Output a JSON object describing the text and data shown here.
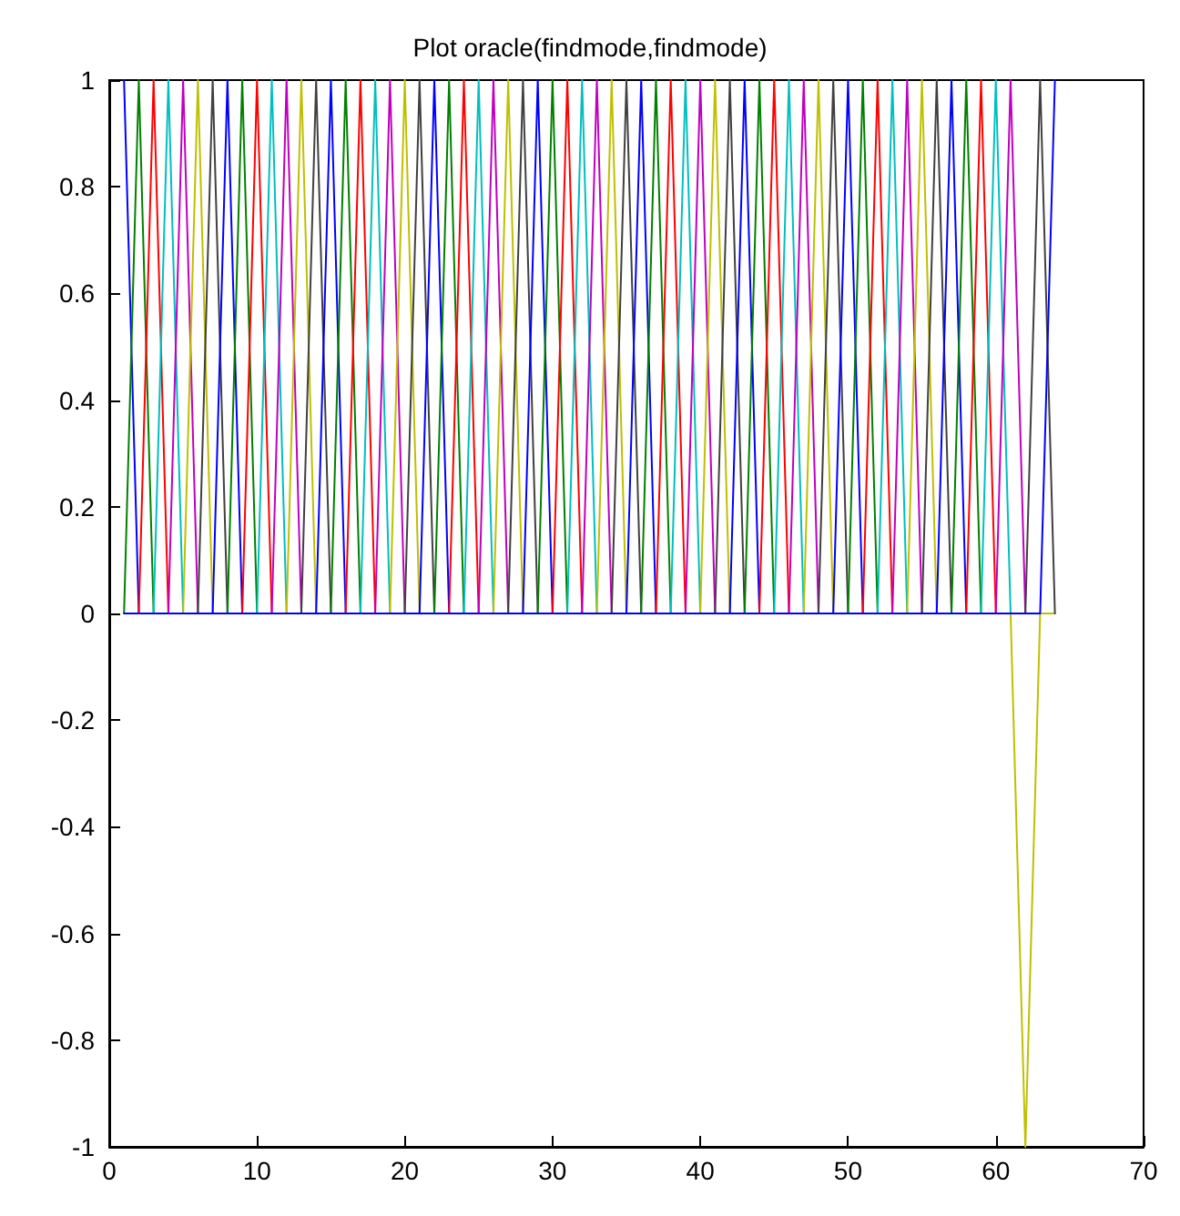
{
  "chart_data": {
    "type": "line",
    "title": "Plot oracle(findmode,findmode)",
    "xlim": [
      0,
      70
    ],
    "xticks": [
      0,
      10,
      20,
      30,
      40,
      50,
      60,
      70
    ],
    "ylim": [
      -1,
      1
    ],
    "yticks": [
      -1,
      -0.8,
      -0.6,
      -0.4,
      -0.2,
      0,
      0.2,
      0.4,
      0.6,
      0.8,
      1
    ],
    "grid": false,
    "marker": "none",
    "line_style": "solid",
    "series": [
      {
        "color": "#0000ff",
        "x": [
          1,
          2
        ],
        "values": [
          1,
          0
        ]
      },
      {
        "color": "#008000",
        "x": [
          1,
          2,
          3
        ],
        "values": [
          0,
          1,
          0
        ]
      },
      {
        "color": "#ff0000",
        "x": [
          2,
          3,
          4
        ],
        "values": [
          0,
          1,
          0
        ]
      },
      {
        "color": "#00bfbf",
        "x": [
          3,
          4,
          5
        ],
        "values": [
          0,
          1,
          0
        ]
      },
      {
        "color": "#bf00bf",
        "x": [
          4,
          5,
          6
        ],
        "values": [
          0,
          1,
          0
        ]
      },
      {
        "color": "#bfbf00",
        "x": [
          5,
          6,
          7
        ],
        "values": [
          0,
          1,
          0
        ]
      },
      {
        "color": "#404040",
        "x": [
          6,
          7,
          8
        ],
        "values": [
          0,
          1,
          0
        ]
      },
      {
        "color": "#0000ff",
        "x": [
          7,
          8,
          9
        ],
        "values": [
          0,
          1,
          0
        ]
      },
      {
        "color": "#008000",
        "x": [
          8,
          9,
          10
        ],
        "values": [
          0,
          1,
          0
        ]
      },
      {
        "color": "#ff0000",
        "x": [
          9,
          10,
          11
        ],
        "values": [
          0,
          1,
          0
        ]
      },
      {
        "color": "#00bfbf",
        "x": [
          10,
          11,
          12
        ],
        "values": [
          0,
          1,
          0
        ]
      },
      {
        "color": "#bf00bf",
        "x": [
          11,
          12,
          13
        ],
        "values": [
          0,
          1,
          0
        ]
      },
      {
        "color": "#bfbf00",
        "x": [
          12,
          13,
          14
        ],
        "values": [
          0,
          1,
          0
        ]
      },
      {
        "color": "#404040",
        "x": [
          13,
          14,
          15
        ],
        "values": [
          0,
          1,
          0
        ]
      },
      {
        "color": "#0000ff",
        "x": [
          14,
          15,
          16
        ],
        "values": [
          0,
          1,
          0
        ]
      },
      {
        "color": "#008000",
        "x": [
          15,
          16,
          17
        ],
        "values": [
          0,
          1,
          0
        ]
      },
      {
        "color": "#ff0000",
        "x": [
          16,
          17,
          18
        ],
        "values": [
          0,
          1,
          0
        ]
      },
      {
        "color": "#00bfbf",
        "x": [
          17,
          18,
          19
        ],
        "values": [
          0,
          1,
          0
        ]
      },
      {
        "color": "#bf00bf",
        "x": [
          18,
          19,
          20
        ],
        "values": [
          0,
          1,
          0
        ]
      },
      {
        "color": "#bfbf00",
        "x": [
          19,
          20,
          21
        ],
        "values": [
          0,
          1,
          0
        ]
      },
      {
        "color": "#404040",
        "x": [
          20,
          21,
          22
        ],
        "values": [
          0,
          1,
          0
        ]
      },
      {
        "color": "#0000ff",
        "x": [
          21,
          22,
          23
        ],
        "values": [
          0,
          1,
          0
        ]
      },
      {
        "color": "#008000",
        "x": [
          22,
          23,
          24
        ],
        "values": [
          0,
          1,
          0
        ]
      },
      {
        "color": "#ff0000",
        "x": [
          23,
          24,
          25
        ],
        "values": [
          0,
          1,
          0
        ]
      },
      {
        "color": "#00bfbf",
        "x": [
          24,
          25,
          26
        ],
        "values": [
          0,
          1,
          0
        ]
      },
      {
        "color": "#bf00bf",
        "x": [
          25,
          26,
          27
        ],
        "values": [
          0,
          1,
          0
        ]
      },
      {
        "color": "#bfbf00",
        "x": [
          26,
          27,
          28
        ],
        "values": [
          0,
          1,
          0
        ]
      },
      {
        "color": "#404040",
        "x": [
          27,
          28,
          29
        ],
        "values": [
          0,
          1,
          0
        ]
      },
      {
        "color": "#0000ff",
        "x": [
          28,
          29,
          30
        ],
        "values": [
          0,
          1,
          0
        ]
      },
      {
        "color": "#008000",
        "x": [
          29,
          30,
          31
        ],
        "values": [
          0,
          1,
          0
        ]
      },
      {
        "color": "#ff0000",
        "x": [
          30,
          31,
          32
        ],
        "values": [
          0,
          1,
          0
        ]
      },
      {
        "color": "#00bfbf",
        "x": [
          31,
          32,
          33
        ],
        "values": [
          0,
          1,
          0
        ]
      },
      {
        "color": "#bf00bf",
        "x": [
          32,
          33,
          34
        ],
        "values": [
          0,
          1,
          0
        ]
      },
      {
        "color": "#bfbf00",
        "x": [
          33,
          34,
          35
        ],
        "values": [
          0,
          1,
          0
        ]
      },
      {
        "color": "#404040",
        "x": [
          34,
          35,
          36
        ],
        "values": [
          0,
          1,
          0
        ]
      },
      {
        "color": "#0000ff",
        "x": [
          35,
          36,
          37
        ],
        "values": [
          0,
          1,
          0
        ]
      },
      {
        "color": "#008000",
        "x": [
          36,
          37,
          38
        ],
        "values": [
          0,
          1,
          0
        ]
      },
      {
        "color": "#ff0000",
        "x": [
          37,
          38,
          39
        ],
        "values": [
          0,
          1,
          0
        ]
      },
      {
        "color": "#00bfbf",
        "x": [
          38,
          39,
          40
        ],
        "values": [
          0,
          1,
          0
        ]
      },
      {
        "color": "#bf00bf",
        "x": [
          39,
          40,
          41
        ],
        "values": [
          0,
          1,
          0
        ]
      },
      {
        "color": "#bfbf00",
        "x": [
          40,
          41,
          42
        ],
        "values": [
          0,
          1,
          0
        ]
      },
      {
        "color": "#404040",
        "x": [
          41,
          42,
          43
        ],
        "values": [
          0,
          1,
          0
        ]
      },
      {
        "color": "#0000ff",
        "x": [
          42,
          43,
          44
        ],
        "values": [
          0,
          1,
          0
        ]
      },
      {
        "color": "#008000",
        "x": [
          43,
          44,
          45
        ],
        "values": [
          0,
          1,
          0
        ]
      },
      {
        "color": "#ff0000",
        "x": [
          44,
          45,
          46
        ],
        "values": [
          0,
          1,
          0
        ]
      },
      {
        "color": "#00bfbf",
        "x": [
          45,
          46,
          47
        ],
        "values": [
          0,
          1,
          0
        ]
      },
      {
        "color": "#bf00bf",
        "x": [
          46,
          47,
          48
        ],
        "values": [
          0,
          1,
          0
        ]
      },
      {
        "color": "#bfbf00",
        "x": [
          47,
          48,
          49
        ],
        "values": [
          0,
          1,
          0
        ]
      },
      {
        "color": "#404040",
        "x": [
          48,
          49,
          50
        ],
        "values": [
          0,
          1,
          0
        ]
      },
      {
        "color": "#0000ff",
        "x": [
          49,
          50,
          51
        ],
        "values": [
          0,
          1,
          0
        ]
      },
      {
        "color": "#008000",
        "x": [
          50,
          51,
          52
        ],
        "values": [
          0,
          1,
          0
        ]
      },
      {
        "color": "#ff0000",
        "x": [
          51,
          52,
          53
        ],
        "values": [
          0,
          1,
          0
        ]
      },
      {
        "color": "#00bfbf",
        "x": [
          52,
          53,
          54
        ],
        "values": [
          0,
          1,
          0
        ]
      },
      {
        "color": "#bf00bf",
        "x": [
          53,
          54,
          55
        ],
        "values": [
          0,
          1,
          0
        ]
      },
      {
        "color": "#bfbf00",
        "x": [
          54,
          55,
          56
        ],
        "values": [
          0,
          1,
          0
        ]
      },
      {
        "color": "#404040",
        "x": [
          55,
          56,
          57
        ],
        "values": [
          0,
          1,
          0
        ]
      },
      {
        "color": "#0000ff",
        "x": [
          56,
          57,
          58
        ],
        "values": [
          0,
          1,
          0
        ]
      },
      {
        "color": "#008000",
        "x": [
          57,
          58,
          59
        ],
        "values": [
          0,
          1,
          0
        ]
      },
      {
        "color": "#ff0000",
        "x": [
          58,
          59,
          60
        ],
        "values": [
          0,
          1,
          0
        ]
      },
      {
        "color": "#00bfbf",
        "x": [
          59,
          60,
          61
        ],
        "values": [
          0,
          1,
          0
        ]
      },
      {
        "color": "#bf00bf",
        "x": [
          60,
          61,
          62
        ],
        "values": [
          0,
          1,
          0
        ]
      },
      {
        "color": "#bfbf00",
        "x": [
          61,
          62,
          63,
          64
        ],
        "values": [
          0,
          -1,
          0,
          0
        ]
      },
      {
        "color": "#404040",
        "x": [
          62,
          63,
          64
        ],
        "values": [
          0,
          1,
          0
        ]
      },
      {
        "color": "#0000ff",
        "x": [
          1,
          63,
          64
        ],
        "values": [
          0,
          0,
          1
        ]
      }
    ]
  }
}
